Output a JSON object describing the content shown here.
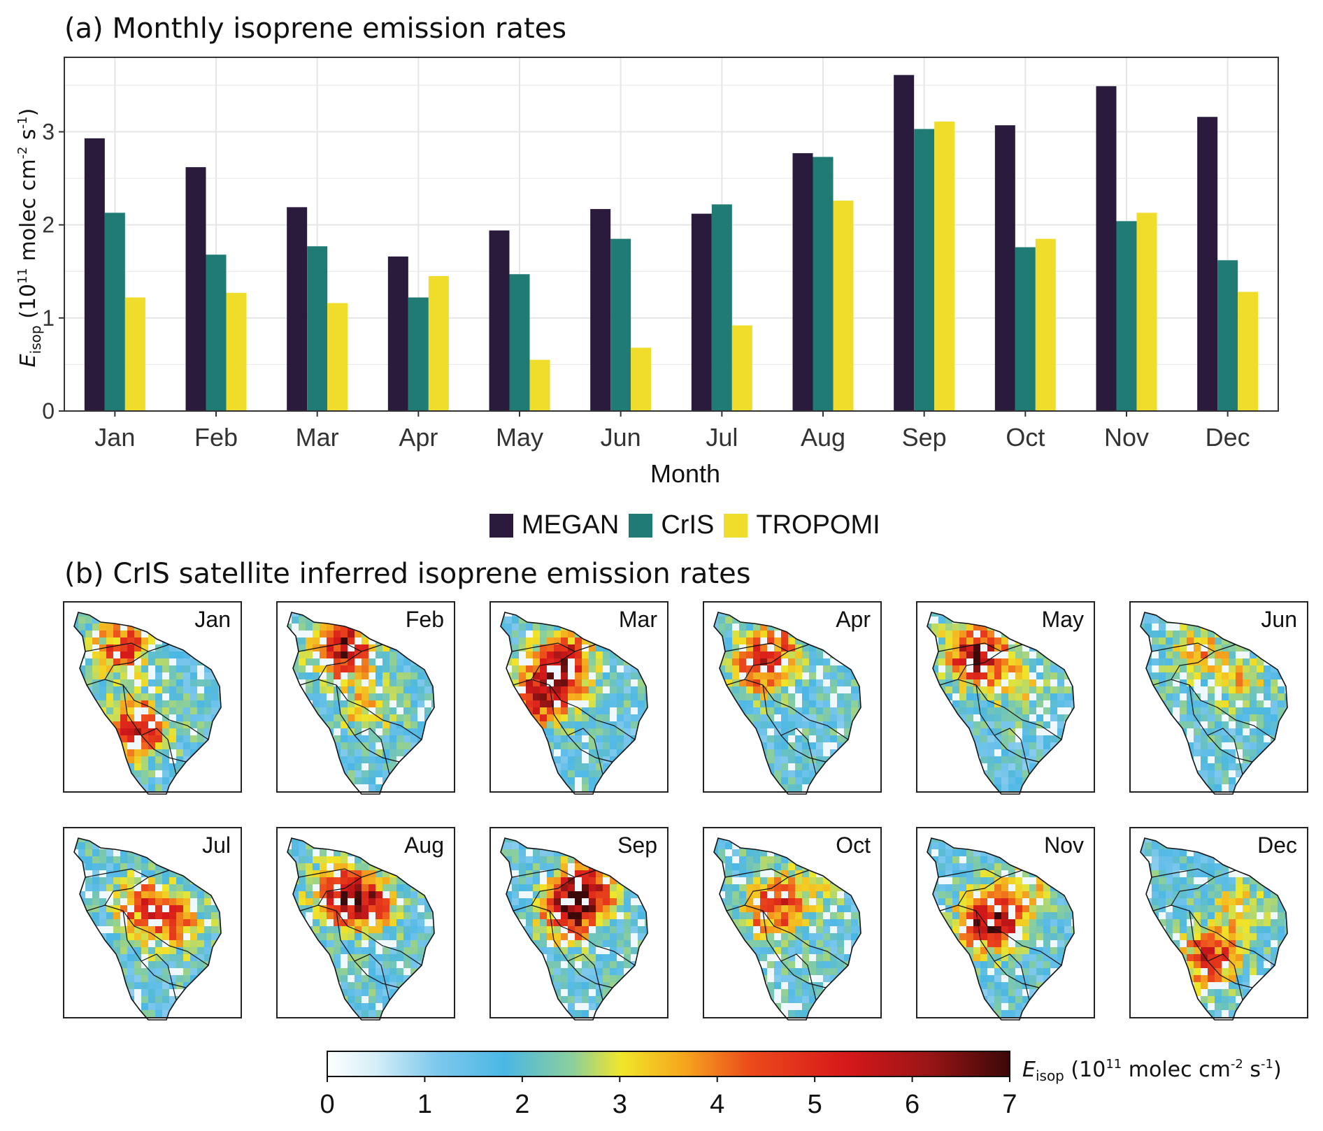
{
  "panel_a_title": "(a) Monthly isoprene emission rates",
  "panel_b_title": "(b) CrIS satellite inferred isoprene emission rates",
  "colors": {
    "MEGAN": "#2a1b3d",
    "CrIS": "#1f7b74",
    "TROPOMI": "#f0dc2a",
    "grid": "#e4e4e4",
    "axis": "#333333"
  },
  "chart_data": [
    {
      "type": "bar",
      "title": "(a) Monthly isoprene emission rates",
      "xlabel": "Month",
      "ylabel": {
        "symbol": "E",
        "subscript": "isop",
        "units_prefix": " (10",
        "exp1": "11",
        "units_mid": " molec cm",
        "exp2": "-2",
        "units_mid2": " s",
        "exp3": "-1",
        "units_suffix": ")"
      },
      "ylim": [
        0,
        3.8
      ],
      "yticks": [
        "0",
        "1",
        "2",
        "3"
      ],
      "categories": [
        "Jan",
        "Feb",
        "Mar",
        "Apr",
        "May",
        "Jun",
        "Jul",
        "Aug",
        "Sep",
        "Oct",
        "Nov",
        "Dec"
      ],
      "series": [
        {
          "name": "MEGAN",
          "values": [
            2.93,
            2.62,
            2.19,
            1.66,
            1.94,
            2.17,
            2.12,
            2.77,
            3.61,
            3.07,
            3.49,
            3.16
          ]
        },
        {
          "name": "CrIS",
          "values": [
            2.13,
            1.68,
            1.77,
            1.22,
            1.47,
            1.85,
            2.22,
            2.73,
            3.03,
            1.76,
            2.04,
            1.62
          ]
        },
        {
          "name": "TROPOMI",
          "values": [
            1.22,
            1.27,
            1.16,
            1.45,
            0.55,
            0.68,
            0.92,
            2.26,
            3.11,
            1.85,
            2.13,
            1.28
          ]
        }
      ],
      "legend_position": "bottom"
    },
    {
      "type": "heatmap",
      "title": "(b) CrIS satellite inferred isoprene emission rates",
      "panels": [
        "Jan",
        "Feb",
        "Mar",
        "Apr",
        "May",
        "Jun",
        "Jul",
        "Aug",
        "Sep",
        "Oct",
        "Nov",
        "Dec"
      ],
      "colorbar": {
        "range": [
          0,
          7
        ],
        "ticks": [
          "0",
          "1",
          "2",
          "3",
          "4",
          "5",
          "6",
          "7"
        ],
        "label": {
          "symbol": "E",
          "subscript": "isop",
          "units_prefix": " (10",
          "exp1": "11",
          "units_mid": " molec cm",
          "exp2": "-2",
          "units_mid2": " s",
          "exp3": "-1",
          "units_suffix": ")"
        }
      }
    }
  ]
}
